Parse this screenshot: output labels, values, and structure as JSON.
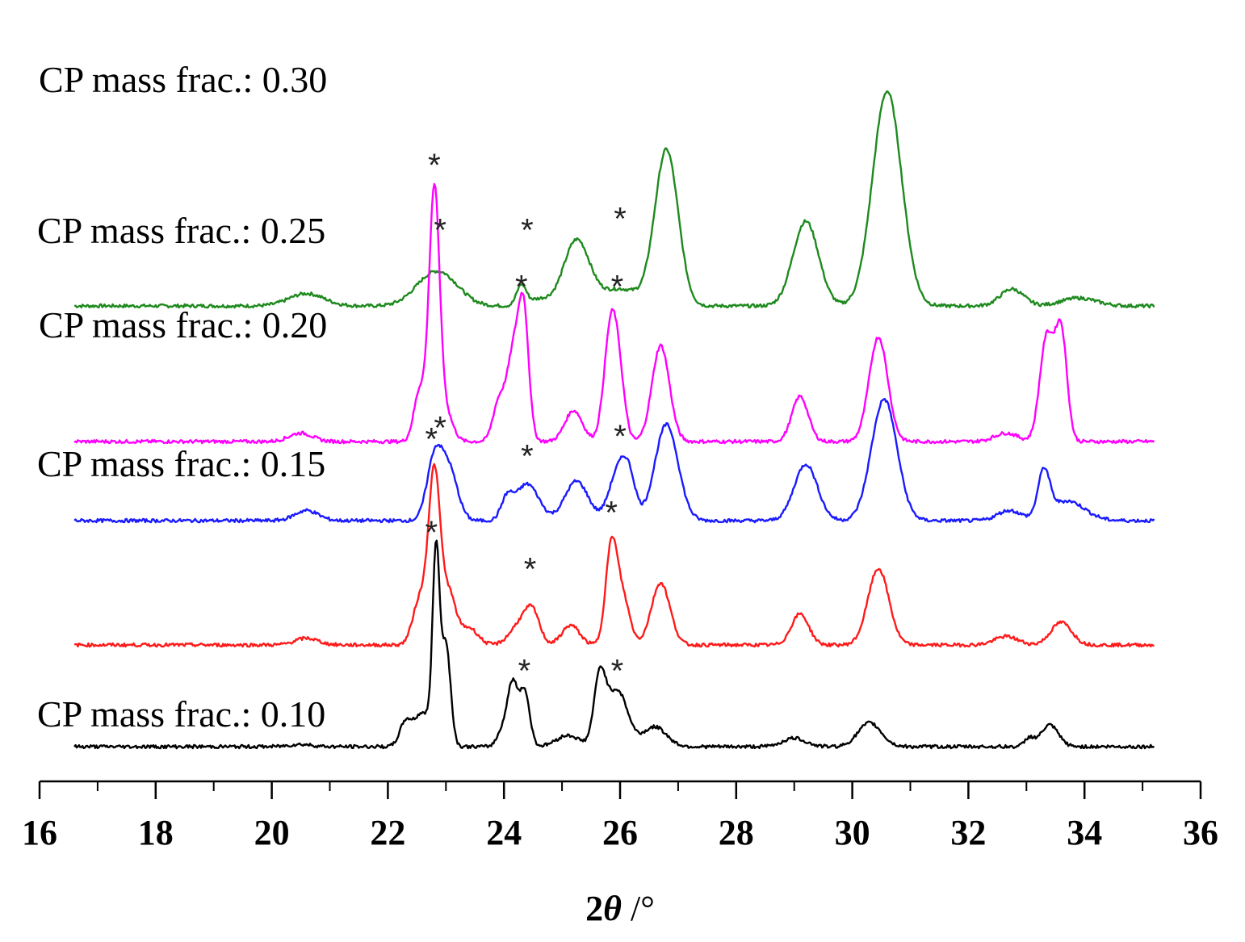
{
  "chart_data": {
    "type": "line",
    "title": "",
    "xlabel_parts": {
      "prefix": "2",
      "symbol": "θ",
      "suffix": " /°"
    },
    "ylabel": "",
    "xlim": [
      16,
      36
    ],
    "xticks": [
      16,
      18,
      20,
      22,
      24,
      26,
      28,
      30,
      32,
      34,
      36
    ],
    "marker_symbol": "*",
    "series": [
      {
        "name": "CP mass frac.: 0.30",
        "color": "#1e8a1e",
        "offset": 7.8,
        "peaks": [
          [
            20.6,
            0.22,
            0.3
          ],
          [
            22.7,
            0.35,
            0.3
          ],
          [
            23.0,
            0.35,
            0.3
          ],
          [
            24.3,
            0.35,
            0.08
          ],
          [
            24.6,
            0.12,
            0.2
          ],
          [
            25.25,
            1.15,
            0.22
          ],
          [
            26.0,
            0.3,
            0.35
          ],
          [
            26.8,
            2.75,
            0.2
          ],
          [
            29.2,
            1.5,
            0.22
          ],
          [
            30.6,
            3.8,
            0.25
          ],
          [
            32.75,
            0.3,
            0.2
          ],
          [
            33.9,
            0.14,
            0.3
          ]
        ],
        "stars": [
          22.9,
          24.4,
          26.0
        ],
        "star_heights": [
          1.35,
          1.35,
          1.55
        ]
      },
      {
        "name": "CP mass frac.: 0.25",
        "color": "#ff00ff",
        "offset": 5.4,
        "peaks": [
          [
            20.5,
            0.15,
            0.2
          ],
          [
            22.55,
            0.9,
            0.1
          ],
          [
            22.8,
            4.4,
            0.09
          ],
          [
            23.0,
            0.5,
            0.12
          ],
          [
            23.9,
            0.6,
            0.1
          ],
          [
            24.2,
            1.8,
            0.14
          ],
          [
            24.35,
            1.5,
            0.08
          ],
          [
            25.2,
            0.55,
            0.15
          ],
          [
            25.85,
            2.1,
            0.12
          ],
          [
            26.0,
            0.6,
            0.1
          ],
          [
            26.7,
            1.7,
            0.15
          ],
          [
            29.1,
            0.8,
            0.14
          ],
          [
            30.45,
            1.85,
            0.16
          ],
          [
            32.65,
            0.15,
            0.2
          ],
          [
            33.35,
            1.85,
            0.12
          ],
          [
            33.6,
            1.9,
            0.1
          ]
        ],
        "stars": [
          22.8,
          24.3,
          25.95
        ],
        "star_heights": [
          4.9,
          2.75,
          2.75
        ]
      },
      {
        "name": "CP mass frac.: 0.20",
        "color": "#1a1aff",
        "offset": 4.0,
        "peaks": [
          [
            20.6,
            0.18,
            0.2
          ],
          [
            22.8,
            1.05,
            0.13
          ],
          [
            23.05,
            0.9,
            0.15
          ],
          [
            24.05,
            0.35,
            0.1
          ],
          [
            24.4,
            0.65,
            0.2
          ],
          [
            25.25,
            0.7,
            0.2
          ],
          [
            25.95,
            0.8,
            0.15
          ],
          [
            26.15,
            0.7,
            0.12
          ],
          [
            26.8,
            1.7,
            0.2
          ],
          [
            29.2,
            1.0,
            0.2
          ],
          [
            30.55,
            2.15,
            0.22
          ],
          [
            32.7,
            0.18,
            0.2
          ],
          [
            33.3,
            0.8,
            0.1
          ],
          [
            33.7,
            0.35,
            0.3
          ]
        ],
        "stars": [
          22.9,
          24.4,
          26.0
        ],
        "star_heights": [
          1.65,
          1.15,
          1.5
        ]
      },
      {
        "name": "CP mass frac.: 0.15",
        "color": "#ff1a1a",
        "offset": 1.8,
        "peaks": [
          [
            20.6,
            0.12,
            0.2
          ],
          [
            22.55,
            0.8,
            0.12
          ],
          [
            22.8,
            3.0,
            0.1
          ],
          [
            23.05,
            0.9,
            0.12
          ],
          [
            23.4,
            0.3,
            0.15
          ],
          [
            24.3,
            0.4,
            0.18
          ],
          [
            24.5,
            0.45,
            0.12
          ],
          [
            25.15,
            0.35,
            0.15
          ],
          [
            25.85,
            1.7,
            0.1
          ],
          [
            26.05,
            0.8,
            0.12
          ],
          [
            26.7,
            1.1,
            0.16
          ],
          [
            29.1,
            0.55,
            0.15
          ],
          [
            30.45,
            1.35,
            0.18
          ],
          [
            32.65,
            0.15,
            0.2
          ],
          [
            33.6,
            0.4,
            0.18
          ]
        ],
        "stars": [
          22.75,
          24.45,
          25.85
        ],
        "star_heights": [
          3.65,
          1.35,
          2.35
        ]
      },
      {
        "name": "CP mass frac.: 0.10",
        "color": "#000000",
        "offset": 0.0,
        "peaks": [
          [
            20.5,
            0.04,
            0.2
          ],
          [
            22.3,
            0.4,
            0.1
          ],
          [
            22.6,
            0.6,
            0.15
          ],
          [
            22.83,
            3.3,
            0.06
          ],
          [
            23.0,
            1.8,
            0.08
          ],
          [
            24.0,
            0.35,
            0.1
          ],
          [
            24.15,
            1.0,
            0.08
          ],
          [
            24.35,
            1.0,
            0.09
          ],
          [
            25.1,
            0.2,
            0.2
          ],
          [
            25.65,
            1.15,
            0.1
          ],
          [
            25.95,
            1.0,
            0.18
          ],
          [
            26.6,
            0.35,
            0.2
          ],
          [
            29.0,
            0.15,
            0.2
          ],
          [
            30.3,
            0.42,
            0.2
          ],
          [
            33.05,
            0.15,
            0.08
          ],
          [
            33.4,
            0.38,
            0.15
          ]
        ],
        "stars": [
          22.75,
          24.35,
          25.95
        ],
        "star_heights": [
          3.8,
          1.35,
          1.35
        ]
      }
    ]
  }
}
